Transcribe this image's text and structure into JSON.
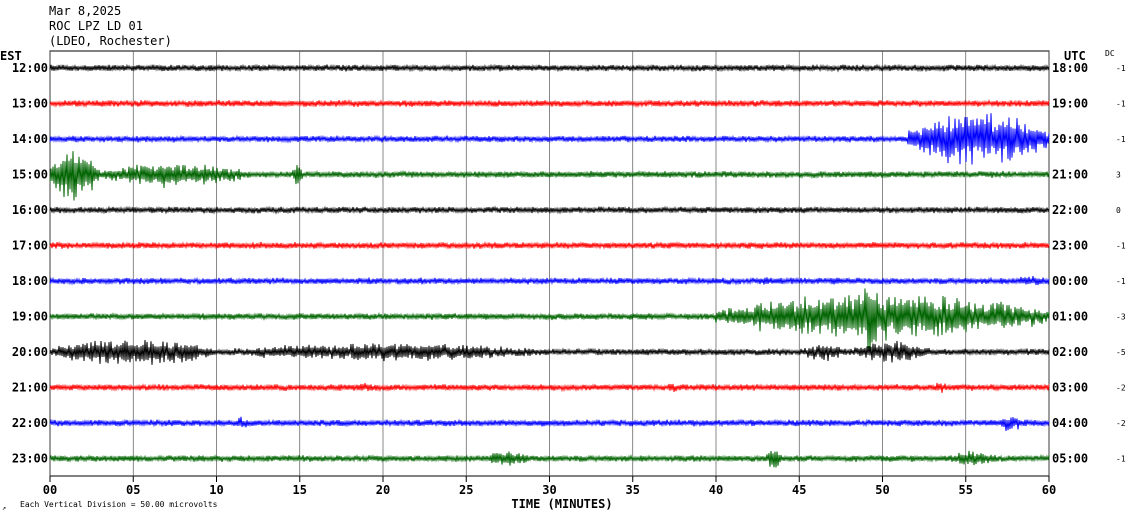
{
  "header": {
    "date": "Mar 8,2025",
    "station": "ROC LPZ LD 01",
    "network": "(LDEO, Rochester)"
  },
  "left_zone_label": "EST",
  "right_zone_label": "UTC",
  "dc_label": "DC",
  "footer_note": "Each Vertical Division =   50.00 microvolts",
  "chart_data": {
    "type": "line",
    "title": "Mar 8,2025 ROC LPZ LD 01 (LDEO, Rochester)",
    "xlabel": "TIME (MINUTES)",
    "xlim": [
      0,
      60
    ],
    "x_ticks": [
      "00",
      "05",
      "10",
      "15",
      "20",
      "25",
      "30",
      "35",
      "40",
      "45",
      "50",
      "55",
      "60"
    ],
    "grid": true,
    "rows": [
      {
        "est": "12:00",
        "utc": "18:00",
        "dc": "-1",
        "color": "#000000"
      },
      {
        "est": "13:00",
        "utc": "19:00",
        "dc": "-1",
        "color": "#ff0000"
      },
      {
        "est": "14:00",
        "utc": "20:00",
        "dc": "-1",
        "color": "#0000ff"
      },
      {
        "est": "15:00",
        "utc": "21:00",
        "dc": "3",
        "color": "#006400"
      },
      {
        "est": "16:00",
        "utc": "22:00",
        "dc": "0",
        "color": "#000000"
      },
      {
        "est": "17:00",
        "utc": "23:00",
        "dc": "-1",
        "color": "#ff0000"
      },
      {
        "est": "18:00",
        "utc": "00:00",
        "dc": "-1",
        "color": "#0000ff"
      },
      {
        "est": "19:00",
        "utc": "01:00",
        "dc": "-3",
        "color": "#006400"
      },
      {
        "est": "20:00",
        "utc": "02:00",
        "dc": "-5",
        "color": "#000000"
      },
      {
        "est": "21:00",
        "utc": "03:00",
        "dc": "-2",
        "color": "#ff0000"
      },
      {
        "est": "22:00",
        "utc": "04:00",
        "dc": "-2",
        "color": "#0000ff"
      },
      {
        "est": "23:00",
        "utc": "05:00",
        "dc": "-1",
        "color": "#006400"
      }
    ]
  }
}
